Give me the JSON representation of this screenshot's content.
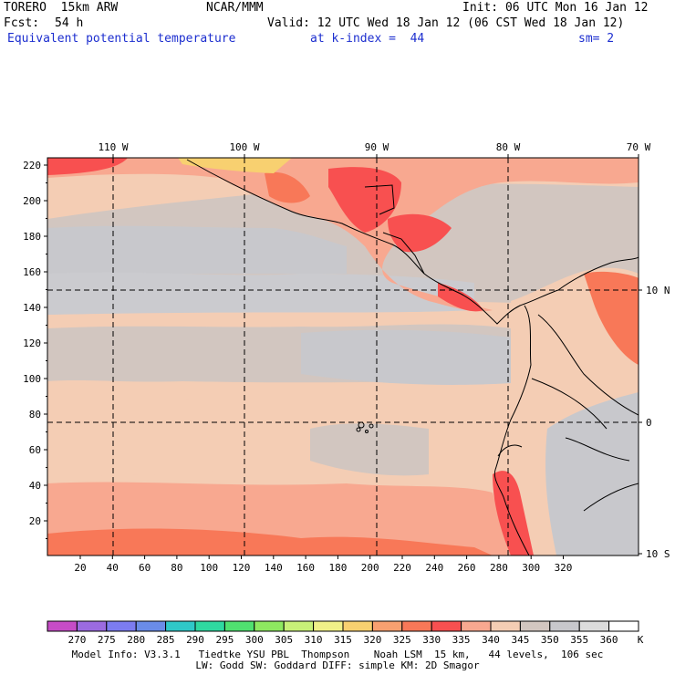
{
  "header": {
    "model": "TORERO  15km ARW",
    "org": "NCAR/MMM",
    "init": "Init: 06 UTC Mon 16 Jan 12",
    "fcst_label": "Fcst:",
    "fcst_value": "54 h",
    "valid": "Valid: 12 UTC Wed 18 Jan 12 (06 CST Wed 18 Jan 12)",
    "field": "Equivalent potential temperature",
    "level": "at k-index =  44",
    "smoothing": "sm= 2"
  },
  "map": {
    "top_axis": [
      "110 W",
      "100 W",
      "90 W",
      "80 W",
      "70 W"
    ],
    "left_axis": [
      "220",
      "200",
      "180",
      "160",
      "140",
      "120",
      "100",
      "80",
      "60",
      "40",
      "20"
    ],
    "bottom_axis": [
      "20",
      "40",
      "60",
      "80",
      "100",
      "120",
      "140",
      "160",
      "180",
      "200",
      "220",
      "240",
      "260",
      "280",
      "300",
      "320"
    ],
    "right_axis": [
      "10 N",
      "0",
      "10 S"
    ]
  },
  "colorbar": {
    "unit": "K",
    "ticks": [
      "270",
      "275",
      "280",
      "285",
      "290",
      "295",
      "300",
      "305",
      "310",
      "315",
      "320",
      "325",
      "330",
      "335",
      "340",
      "345",
      "350",
      "355",
      "360"
    ],
    "colors": [
      "#c64cc6",
      "#9b6be0",
      "#7c7cf0",
      "#6a8ce8",
      "#2fc8c8",
      "#2fd8a0",
      "#50e070",
      "#8ee860",
      "#c8f078",
      "#f0f088",
      "#f8d070",
      "#f8a070",
      "#f87858",
      "#f85050",
      "#f8a890",
      "#f4cdb4",
      "#d2c6c0",
      "#c8c8cc",
      "#dcdcdc",
      "#ffffff"
    ]
  },
  "footer": {
    "line1": "Model Info: V3.3.1   Tiedtke YSU PBL  Thompson    Noah LSM  15 km,   44 levels,  106 sec",
    "line2": "LW: Godd SW: Goddard DIFF: simple KM: 2D Smagor"
  }
}
